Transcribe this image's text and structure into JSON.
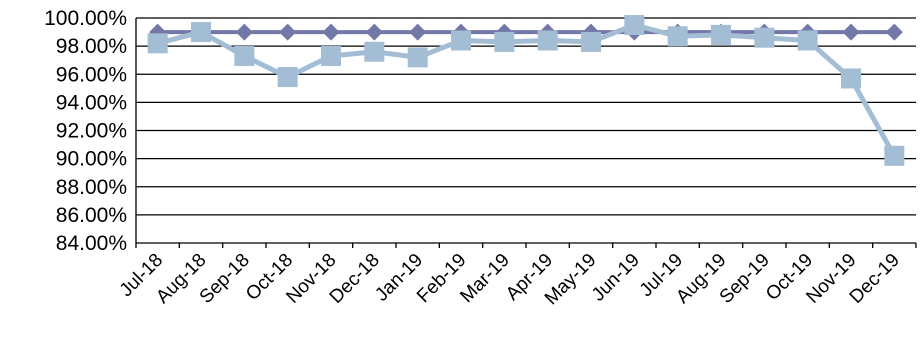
{
  "chart_data": {
    "type": "line",
    "categories": [
      "Jul-18",
      "Aug-18",
      "Sep-18",
      "Oct-18",
      "Nov-18",
      "Dec-18",
      "Jan-19",
      "Feb-19",
      "Mar-19",
      "Apr-19",
      "May-19",
      "Jun-19",
      "Jul-19",
      "Aug-19",
      "Sep-19",
      "Oct-19",
      "Nov-19",
      "Dec-19"
    ],
    "series": [
      {
        "color": "#7478a8",
        "marker": "diamond",
        "values": [
          99.0,
          99.0,
          99.0,
          99.0,
          99.0,
          99.0,
          99.0,
          99.0,
          99.0,
          99.0,
          99.0,
          99.0,
          99.0,
          99.0,
          99.0,
          99.0,
          99.0,
          99.0
        ]
      },
      {
        "color": "#a3bed4",
        "marker": "square",
        "values": [
          98.2,
          99.0,
          97.3,
          95.8,
          97.3,
          97.6,
          97.2,
          98.4,
          98.3,
          98.4,
          98.3,
          99.5,
          98.7,
          98.8,
          98.6,
          98.4,
          95.7,
          90.2
        ]
      }
    ],
    "yticks": [
      "100.00%",
      "98.00%",
      "96.00%",
      "94.00%",
      "92.00%",
      "90.00%",
      "88.00%",
      "86.00%",
      "84.00%"
    ],
    "ylim": [
      84,
      100
    ],
    "grid": true,
    "legend": "none"
  }
}
